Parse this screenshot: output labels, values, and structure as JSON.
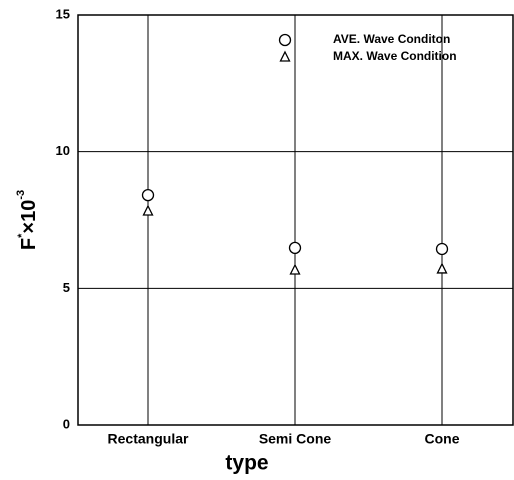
{
  "chart_data": {
    "type": "scatter",
    "categories": [
      "Rectangular",
      "Semi Cone",
      "Cone"
    ],
    "series": [
      {
        "name": "AVE. Wave Conditon",
        "color": "#000000",
        "marker": "circle",
        "values": [
          8.41,
          6.48,
          6.44
        ]
      },
      {
        "name": "MAX. Wave Condition",
        "color": "#000000",
        "marker": "triangle",
        "values": [
          7.83,
          5.67,
          5.71
        ]
      }
    ],
    "xlabel": "type",
    "ylabel": [
      "F",
      "*",
      "×10",
      "-3"
    ],
    "ylim": [
      0,
      15
    ],
    "yticks": [
      0,
      5,
      10,
      15
    ],
    "grid": true,
    "legend": "top-right"
  }
}
